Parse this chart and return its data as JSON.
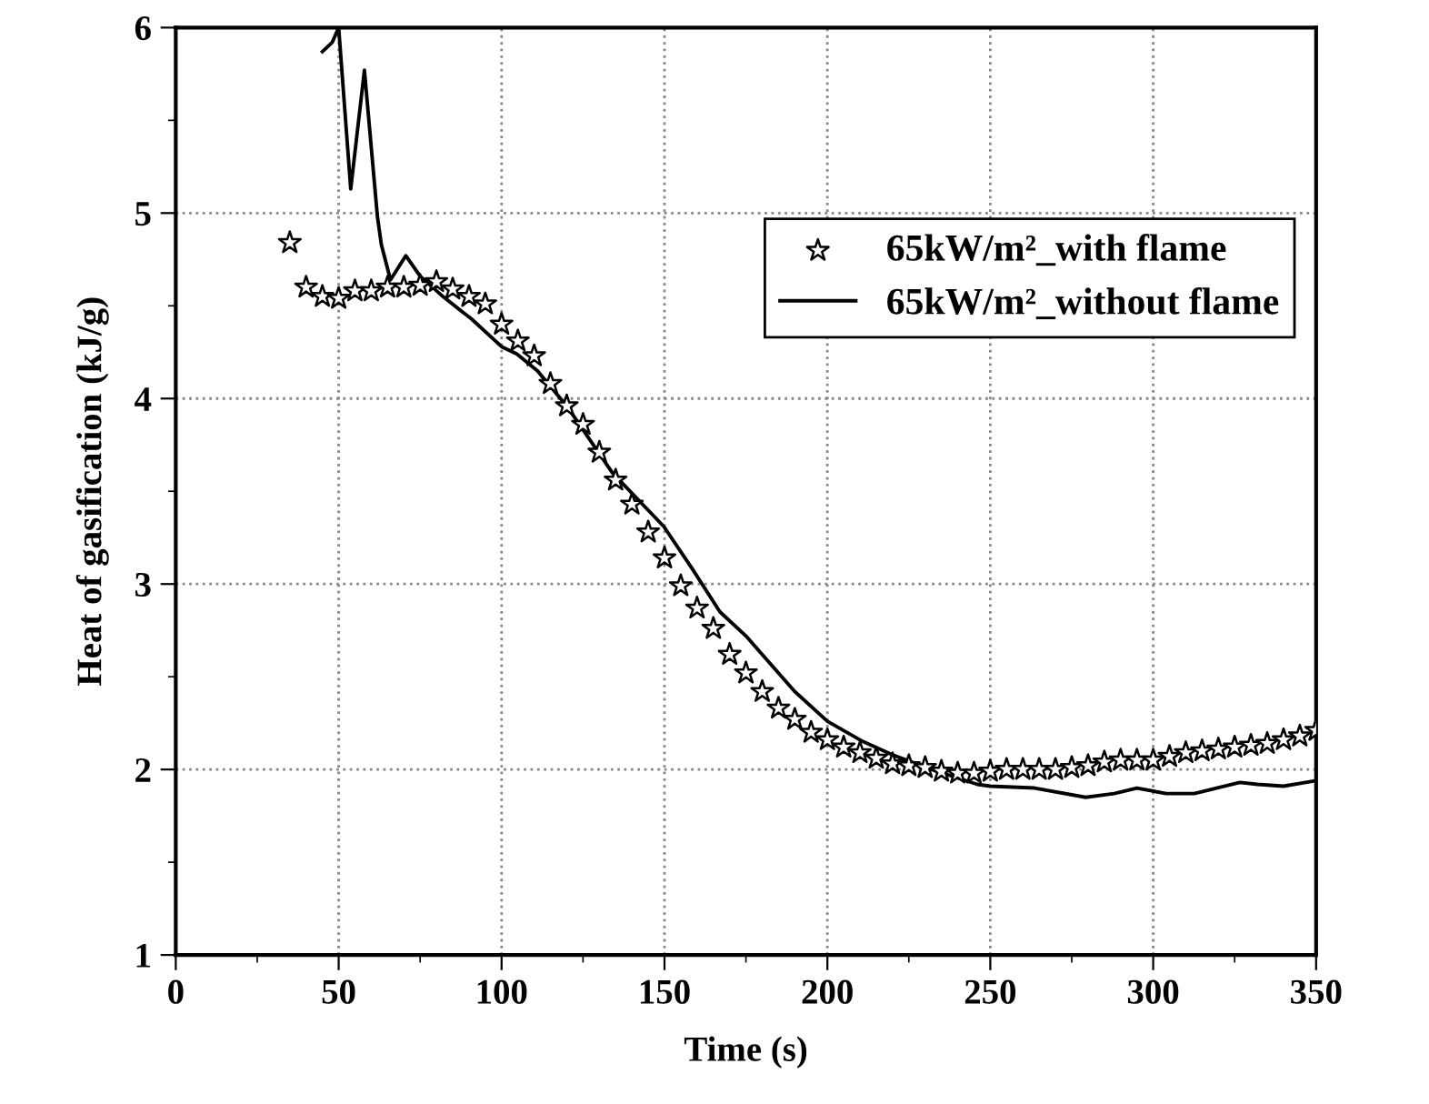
{
  "chart_data": {
    "type": "line",
    "xlabel": "Time (s)",
    "ylabel": "Heat of gasification (kJ/g)",
    "xlim": [
      0,
      350
    ],
    "ylim": [
      1,
      6
    ],
    "xticks": [
      0,
      50,
      100,
      150,
      200,
      250,
      300,
      350
    ],
    "yticks": [
      1,
      2,
      3,
      4,
      5,
      6
    ],
    "grid": true,
    "legend": "right",
    "series": [
      {
        "name": "65kW/m²_with flame",
        "type": "scatter",
        "marker": "star",
        "color": "#000000",
        "x": [
          35,
          40,
          45,
          50,
          55,
          60,
          65,
          70,
          75,
          80,
          85,
          90,
          95,
          100,
          105,
          110,
          115,
          120,
          125,
          130,
          135,
          140,
          145,
          150,
          155,
          160,
          165,
          170,
          175,
          180,
          185,
          190,
          195,
          200,
          205,
          210,
          215,
          220,
          225,
          230,
          235,
          240,
          245,
          250,
          255,
          260,
          265,
          270,
          275,
          280,
          285,
          290,
          295,
          300,
          305,
          310,
          315,
          320,
          325,
          330,
          335,
          340,
          345,
          350
        ],
        "values": [
          4.84,
          4.6,
          4.55,
          4.54,
          4.58,
          4.58,
          4.6,
          4.6,
          4.61,
          4.63,
          4.59,
          4.55,
          4.51,
          4.4,
          4.31,
          4.23,
          4.08,
          3.96,
          3.86,
          3.71,
          3.56,
          3.43,
          3.28,
          3.14,
          2.99,
          2.87,
          2.76,
          2.62,
          2.52,
          2.42,
          2.33,
          2.27,
          2.2,
          2.16,
          2.12,
          2.09,
          2.06,
          2.03,
          2.02,
          2.01,
          1.99,
          1.98,
          1.98,
          1.99,
          2.0,
          2.0,
          2.0,
          2.0,
          2.01,
          2.02,
          2.04,
          2.05,
          2.05,
          2.05,
          2.07,
          2.09,
          2.1,
          2.11,
          2.12,
          2.13,
          2.14,
          2.16,
          2.18,
          2.21
        ]
      },
      {
        "name": "65kW/m²_without flame",
        "marker": "none",
        "line_style": "solid",
        "color": "#000000",
        "x": [
          45,
          48,
          50,
          53.7,
          57.9,
          61.9,
          63.1,
          65.9,
          70.6,
          75,
          82,
          90.7,
          100,
          104.7,
          111,
          120,
          134,
          149.8,
          158.6,
          167,
          175,
          180,
          190,
          200,
          211,
          219.8,
          232,
          246,
          250,
          263.6,
          279.3,
          288,
          295,
          304,
          312.6,
          326.6,
          332,
          340,
          350
        ],
        "values": [
          5.87,
          5.92,
          6.0,
          5.13,
          5.77,
          4.98,
          4.83,
          4.64,
          4.77,
          4.66,
          4.55,
          4.43,
          4.28,
          4.24,
          4.15,
          3.96,
          3.6,
          3.31,
          3.08,
          2.85,
          2.72,
          2.62,
          2.42,
          2.26,
          2.15,
          2.08,
          2.0,
          1.92,
          1.91,
          1.9,
          1.85,
          1.87,
          1.9,
          1.87,
          1.87,
          1.93,
          1.92,
          1.91,
          1.94
        ]
      }
    ]
  }
}
